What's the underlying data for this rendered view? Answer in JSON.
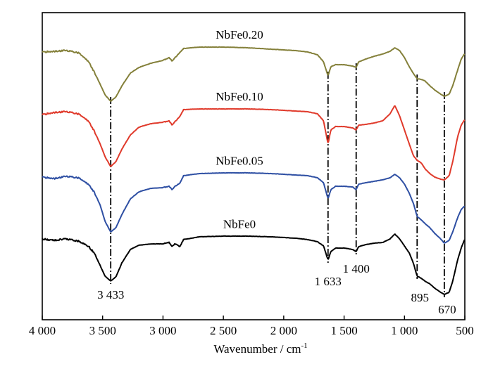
{
  "chart_data": {
    "type": "line",
    "xlabel": "Wavenumber / cm",
    "xlabel_sup": "-1",
    "xlim": [
      4000,
      500
    ],
    "x_reversed": true,
    "y_axis_visible": false,
    "grid": false,
    "x_ticks": [
      {
        "value": 4000,
        "label": "4 000"
      },
      {
        "value": 3500,
        "label": "3 500"
      },
      {
        "value": 3000,
        "label": "3 000"
      },
      {
        "value": 2500,
        "label": "2 500"
      },
      {
        "value": 2000,
        "label": "2 000"
      },
      {
        "value": 1500,
        "label": "1 500"
      },
      {
        "value": 1000,
        "label": "1 000"
      },
      {
        "value": 500,
        "label": "500"
      }
    ],
    "series": [
      {
        "name": "NbFe0",
        "color": "#000000",
        "points": [
          [
            4000,
            340
          ],
          [
            3900,
            342
          ],
          [
            3800,
            340
          ],
          [
            3700,
            343
          ],
          [
            3620,
            350
          ],
          [
            3570,
            360
          ],
          [
            3520,
            378
          ],
          [
            3480,
            393
          ],
          [
            3433,
            400
          ],
          [
            3390,
            394
          ],
          [
            3340,
            374
          ],
          [
            3270,
            355
          ],
          [
            3200,
            349
          ],
          [
            3100,
            347
          ],
          [
            3000,
            347
          ],
          [
            2950,
            345
          ],
          [
            2925,
            351
          ],
          [
            2900,
            347
          ],
          [
            2860,
            351
          ],
          [
            2830,
            341
          ],
          [
            2700,
            337
          ],
          [
            2500,
            336
          ],
          [
            2300,
            336
          ],
          [
            2100,
            337
          ],
          [
            1900,
            339
          ],
          [
            1800,
            341
          ],
          [
            1720,
            344
          ],
          [
            1670,
            350
          ],
          [
            1633,
            370
          ],
          [
            1610,
            358
          ],
          [
            1570,
            353
          ],
          [
            1500,
            353
          ],
          [
            1430,
            355
          ],
          [
            1400,
            358
          ],
          [
            1380,
            351
          ],
          [
            1320,
            348
          ],
          [
            1250,
            346
          ],
          [
            1180,
            345
          ],
          [
            1120,
            340
          ],
          [
            1080,
            333
          ],
          [
            1040,
            340
          ],
          [
            1000,
            350
          ],
          [
            960,
            360
          ],
          [
            925,
            375
          ],
          [
            895,
            393
          ],
          [
            860,
            396
          ],
          [
            830,
            400
          ],
          [
            790,
            404
          ],
          [
            750,
            410
          ],
          [
            700,
            416
          ],
          [
            670,
            419
          ],
          [
            630,
            416
          ],
          [
            600,
            400
          ],
          [
            560,
            370
          ],
          [
            530,
            353
          ],
          [
            500,
            340
          ]
        ]
      },
      {
        "name": "NbFe0.05",
        "color": "#2e4fa3",
        "points": [
          [
            4000,
            252
          ],
          [
            3900,
            254
          ],
          [
            3800,
            251
          ],
          [
            3700,
            253
          ],
          [
            3620,
            262
          ],
          [
            3570,
            273
          ],
          [
            3520,
            292
          ],
          [
            3480,
            315
          ],
          [
            3433,
            330
          ],
          [
            3390,
            324
          ],
          [
            3340,
            305
          ],
          [
            3270,
            283
          ],
          [
            3200,
            273
          ],
          [
            3100,
            268
          ],
          [
            3000,
            267
          ],
          [
            2950,
            265
          ],
          [
            2925,
            270
          ],
          [
            2900,
            265
          ],
          [
            2860,
            261
          ],
          [
            2830,
            250
          ],
          [
            2700,
            247
          ],
          [
            2500,
            246
          ],
          [
            2300,
            246
          ],
          [
            2100,
            247
          ],
          [
            1900,
            249
          ],
          [
            1800,
            250
          ],
          [
            1720,
            253
          ],
          [
            1670,
            260
          ],
          [
            1633,
            283
          ],
          [
            1610,
            270
          ],
          [
            1570,
            265
          ],
          [
            1500,
            265
          ],
          [
            1430,
            266
          ],
          [
            1400,
            270
          ],
          [
            1380,
            262
          ],
          [
            1320,
            260
          ],
          [
            1250,
            258
          ],
          [
            1180,
            256
          ],
          [
            1120,
            253
          ],
          [
            1080,
            248
          ],
          [
            1040,
            253
          ],
          [
            1000,
            262
          ],
          [
            960,
            275
          ],
          [
            925,
            290
          ],
          [
            895,
            308
          ],
          [
            860,
            313
          ],
          [
            830,
            318
          ],
          [
            790,
            324
          ],
          [
            750,
            332
          ],
          [
            700,
            340
          ],
          [
            670,
            346
          ],
          [
            630,
            342
          ],
          [
            600,
            330
          ],
          [
            560,
            310
          ],
          [
            530,
            298
          ],
          [
            500,
            293
          ]
        ]
      },
      {
        "name": "NbFe0.10",
        "color": "#e03a2b",
        "points": [
          [
            4000,
            163
          ],
          [
            3900,
            160
          ],
          [
            3800,
            159
          ],
          [
            3700,
            162
          ],
          [
            3620,
            172
          ],
          [
            3570,
            186
          ],
          [
            3520,
            205
          ],
          [
            3480,
            223
          ],
          [
            3433,
            237
          ],
          [
            3390,
            230
          ],
          [
            3340,
            212
          ],
          [
            3270,
            192
          ],
          [
            3200,
            181
          ],
          [
            3100,
            176
          ],
          [
            3000,
            174
          ],
          [
            2950,
            172
          ],
          [
            2925,
            178
          ],
          [
            2900,
            173
          ],
          [
            2860,
            166
          ],
          [
            2830,
            156
          ],
          [
            2700,
            155
          ],
          [
            2500,
            155
          ],
          [
            2300,
            155
          ],
          [
            2100,
            156
          ],
          [
            1900,
            158
          ],
          [
            1800,
            159
          ],
          [
            1720,
            162
          ],
          [
            1670,
            172
          ],
          [
            1633,
            205
          ],
          [
            1610,
            185
          ],
          [
            1570,
            180
          ],
          [
            1500,
            180
          ],
          [
            1430,
            182
          ],
          [
            1400,
            185
          ],
          [
            1380,
            178
          ],
          [
            1320,
            177
          ],
          [
            1250,
            175
          ],
          [
            1180,
            172
          ],
          [
            1120,
            162
          ],
          [
            1080,
            150
          ],
          [
            1040,
            165
          ],
          [
            1000,
            185
          ],
          [
            960,
            205
          ],
          [
            925,
            222
          ],
          [
            895,
            228
          ],
          [
            860,
            232
          ],
          [
            830,
            240
          ],
          [
            790,
            247
          ],
          [
            750,
            252
          ],
          [
            700,
            255
          ],
          [
            670,
            256
          ],
          [
            630,
            250
          ],
          [
            600,
            230
          ],
          [
            560,
            195
          ],
          [
            530,
            178
          ],
          [
            500,
            170
          ]
        ]
      },
      {
        "name": "NbFe0.20",
        "color": "#84803a",
        "points": [
          [
            4000,
            74
          ],
          [
            3900,
            73
          ],
          [
            3800,
            72
          ],
          [
            3700,
            75
          ],
          [
            3620,
            87
          ],
          [
            3570,
            102
          ],
          [
            3520,
            120
          ],
          [
            3480,
            135
          ],
          [
            3433,
            144
          ],
          [
            3390,
            138
          ],
          [
            3340,
            122
          ],
          [
            3270,
            104
          ],
          [
            3200,
            96
          ],
          [
            3100,
            90
          ],
          [
            3000,
            86
          ],
          [
            2950,
            82
          ],
          [
            2925,
            87
          ],
          [
            2900,
            82
          ],
          [
            2860,
            75
          ],
          [
            2830,
            69
          ],
          [
            2700,
            67
          ],
          [
            2500,
            67
          ],
          [
            2300,
            68
          ],
          [
            2100,
            70
          ],
          [
            1900,
            72
          ],
          [
            1800,
            74
          ],
          [
            1720,
            78
          ],
          [
            1670,
            88
          ],
          [
            1633,
            108
          ],
          [
            1610,
            95
          ],
          [
            1570,
            92
          ],
          [
            1500,
            92
          ],
          [
            1430,
            94
          ],
          [
            1400,
            96
          ],
          [
            1380,
            88
          ],
          [
            1320,
            84
          ],
          [
            1250,
            80
          ],
          [
            1180,
            77
          ],
          [
            1120,
            73
          ],
          [
            1080,
            68
          ],
          [
            1040,
            72
          ],
          [
            1000,
            82
          ],
          [
            960,
            95
          ],
          [
            925,
            105
          ],
          [
            895,
            112
          ],
          [
            860,
            113
          ],
          [
            830,
            115
          ],
          [
            790,
            122
          ],
          [
            750,
            128
          ],
          [
            700,
            134
          ],
          [
            670,
            137
          ],
          [
            630,
            134
          ],
          [
            600,
            122
          ],
          [
            560,
            100
          ],
          [
            530,
            84
          ],
          [
            500,
            76
          ]
        ]
      }
    ],
    "peak_markers": [
      {
        "x": 3433,
        "label": "3 433"
      },
      {
        "x": 1633,
        "label": "1 633"
      },
      {
        "x": 1400,
        "label": "1 400"
      },
      {
        "x": 895,
        "label": "895"
      },
      {
        "x": 670,
        "label": "670"
      }
    ]
  }
}
